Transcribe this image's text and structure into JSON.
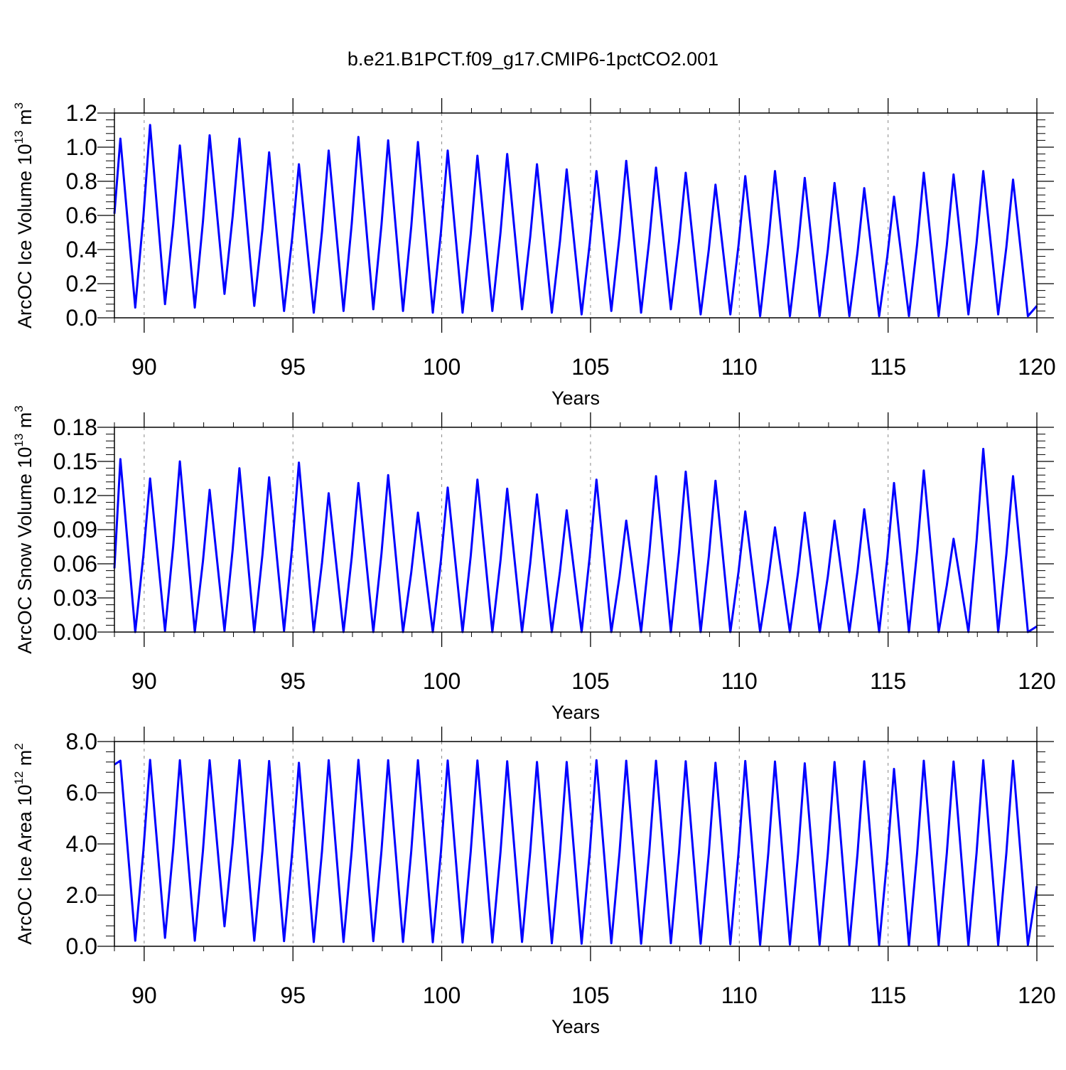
{
  "title": "b.e21.B1PCT.f09_g17.CMIP6-1pctCO2.001",
  "line_color": "#0000ff",
  "chart_data": [
    {
      "type": "line",
      "title": "",
      "xlabel": "Years",
      "ylabel": {
        "main": "ArcOC Ice Volume 10",
        "exp": "13",
        "unit": " m",
        "unit_exp": "3"
      },
      "xlim": [
        89,
        120
      ],
      "ylim": [
        0,
        1.2
      ],
      "xticks": [
        90,
        95,
        100,
        105,
        110,
        115,
        120
      ],
      "xtick_labels": [
        "90",
        "95",
        "100",
        "105",
        "110",
        "115",
        "120"
      ],
      "yticks": [
        0,
        0.2,
        0.4,
        0.6,
        0.8,
        1.0,
        1.2
      ],
      "ytick_labels": [
        "0.0",
        "0.2",
        "0.4",
        "0.6",
        "0.8",
        "1.0",
        "1.2"
      ],
      "grid": "dashed vertical at major x ticks",
      "series": [
        {
          "peaks": [
            1.05,
            1.13,
            1.01,
            1.07,
            1.05,
            0.97,
            0.9,
            0.98,
            1.06,
            1.04,
            1.03,
            0.98,
            0.95,
            0.96,
            0.9,
            0.87,
            0.86,
            0.92,
            0.88,
            0.85,
            0.78,
            0.83,
            0.86,
            0.82,
            0.79,
            0.76,
            0.71,
            0.85,
            0.84,
            0.86,
            0.81
          ],
          "troughs": [
            0.06,
            0.08,
            0.06,
            0.14,
            0.07,
            0.04,
            0.03,
            0.04,
            0.05,
            0.04,
            0.03,
            0.03,
            0.04,
            0.05,
            0.03,
            0.02,
            0.04,
            0.03,
            0.05,
            0.02,
            0.02,
            0.01,
            0.01,
            0.01,
            0.01,
            0.01,
            0.01,
            0.01,
            0.02,
            0.02,
            0.01
          ],
          "start_value": 0.61,
          "end_value": 0.07
        }
      ]
    },
    {
      "type": "line",
      "title": "",
      "xlabel": "Years",
      "ylabel": {
        "main": "ArcOC Snow Volume 10",
        "exp": "13",
        "unit": " m",
        "unit_exp": "3"
      },
      "xlim": [
        89,
        120
      ],
      "ylim": [
        0,
        0.18
      ],
      "xticks": [
        90,
        95,
        100,
        105,
        110,
        115,
        120
      ],
      "xtick_labels": [
        "90",
        "95",
        "100",
        "105",
        "110",
        "115",
        "120"
      ],
      "yticks": [
        0,
        0.03,
        0.06,
        0.09,
        0.12,
        0.15,
        0.18
      ],
      "ytick_labels": [
        "0.00",
        "0.03",
        "0.06",
        "0.09",
        "0.12",
        "0.15",
        "0.18"
      ],
      "grid": "dashed vertical at major x ticks",
      "series": [
        {
          "peaks": [
            0.152,
            0.135,
            0.15,
            0.125,
            0.144,
            0.136,
            0.149,
            0.122,
            0.131,
            0.138,
            0.105,
            0.127,
            0.134,
            0.126,
            0.121,
            0.107,
            0.134,
            0.098,
            0.137,
            0.141,
            0.133,
            0.106,
            0.092,
            0.105,
            0.098,
            0.108,
            0.131,
            0.142,
            0.082,
            0.161,
            0.137
          ],
          "troughs": [
            0.0,
            0.001,
            0.0,
            0.001,
            0.0,
            0.001,
            0.0,
            0.0,
            0.0,
            0.0,
            0.0,
            0.0,
            0.0,
            0.0,
            0.0,
            0.0,
            0.0,
            0.0,
            0.0,
            0.0,
            0.0,
            0.0,
            0.0,
            0.0,
            0.0,
            0.0,
            0.0,
            0.0,
            0.0,
            0.0,
            0.0
          ],
          "start_value": 0.056,
          "end_value": 0.005
        }
      ]
    },
    {
      "type": "line",
      "title": "",
      "xlabel": "Years",
      "ylabel": {
        "main": "ArcOC Ice Area 10",
        "exp": "12",
        "unit": " m",
        "unit_exp": "2"
      },
      "xlim": [
        89,
        120
      ],
      "ylim": [
        0,
        8.0
      ],
      "xticks": [
        90,
        95,
        100,
        105,
        110,
        115,
        120
      ],
      "xtick_labels": [
        "90",
        "95",
        "100",
        "105",
        "110",
        "115",
        "120"
      ],
      "yticks": [
        0,
        2.0,
        4.0,
        6.0,
        8.0
      ],
      "ytick_labels": [
        "0.0",
        "2.0",
        "4.0",
        "6.0",
        "8.0"
      ],
      "grid": "dashed vertical at major x ticks",
      "series": [
        {
          "peaks": [
            7.25,
            7.28,
            7.27,
            7.27,
            7.27,
            7.24,
            7.17,
            7.27,
            7.28,
            7.27,
            7.27,
            7.26,
            7.26,
            7.23,
            7.2,
            7.2,
            7.27,
            7.25,
            7.25,
            7.23,
            7.17,
            7.24,
            7.22,
            7.15,
            7.2,
            7.23,
            6.93,
            7.25,
            7.22,
            7.27,
            7.25
          ],
          "troughs": [
            0.22,
            0.33,
            0.22,
            0.78,
            0.22,
            0.2,
            0.17,
            0.17,
            0.2,
            0.17,
            0.16,
            0.15,
            0.15,
            0.17,
            0.12,
            0.1,
            0.12,
            0.1,
            0.12,
            0.1,
            0.08,
            0.06,
            0.07,
            0.06,
            0.05,
            0.05,
            0.04,
            0.05,
            0.05,
            0.05,
            0.05
          ],
          "start_value": 7.1,
          "end_value": 2.35
        }
      ]
    }
  ]
}
